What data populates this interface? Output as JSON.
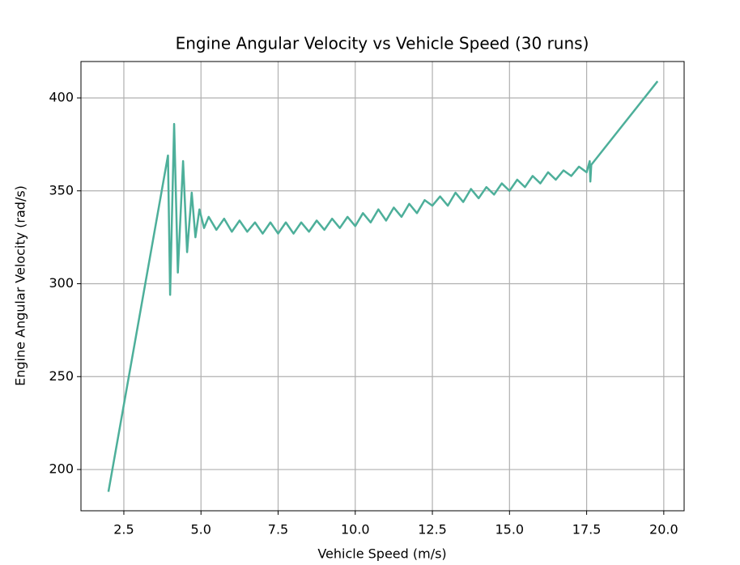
{
  "chart_data": {
    "type": "line",
    "title": "Engine Angular Velocity vs Vehicle Speed (30 runs)",
    "xlabel": "Vehicle Speed (m/s)",
    "ylabel": "Engine Angular Velocity (rad/s)",
    "color": "#4daf9a",
    "grid": true,
    "x": [
      2.0,
      3.93,
      4.0,
      4.13,
      4.25,
      4.42,
      4.55,
      4.7,
      4.82,
      4.95,
      5.1,
      5.25,
      5.5,
      5.75,
      6.0,
      6.25,
      6.5,
      6.75,
      7.0,
      7.25,
      7.5,
      7.75,
      8.0,
      8.25,
      8.5,
      8.75,
      9.0,
      9.25,
      9.5,
      9.75,
      10.0,
      10.25,
      10.5,
      10.75,
      11.0,
      11.25,
      11.5,
      11.75,
      12.0,
      12.25,
      12.5,
      12.75,
      13.0,
      13.25,
      13.5,
      13.75,
      14.0,
      14.25,
      14.5,
      14.75,
      15.0,
      15.25,
      15.5,
      15.75,
      16.0,
      16.25,
      16.5,
      16.75,
      17.0,
      17.25,
      17.5,
      17.6,
      17.62,
      17.65,
      19.8
    ],
    "values": [
      188,
      369,
      294,
      386,
      306,
      366,
      317,
      349,
      325,
      340,
      330,
      336,
      329,
      335,
      328,
      334,
      328,
      333,
      327,
      333,
      327,
      333,
      327,
      333,
      328,
      334,
      329,
      335,
      330,
      336,
      331,
      338,
      333,
      340,
      334,
      341,
      336,
      343,
      338,
      345,
      342,
      347,
      342,
      349,
      344,
      351,
      346,
      352,
      348,
      354,
      350,
      356,
      352,
      358,
      354,
      360,
      356,
      361,
      358,
      363,
      360,
      366,
      355,
      364,
      409
    ],
    "xlim": [
      1.11,
      20.66
    ],
    "ylim": [
      177.8,
      419.6
    ],
    "xticks": [
      2.5,
      {
        "value": 5,
        "label": "5.0"
      },
      7.5,
      {
        "value": 10,
        "label": "10.0"
      },
      12.5,
      {
        "value": 15,
        "label": "15.0"
      },
      17.5,
      {
        "value": 20,
        "label": "20.0"
      }
    ],
    "yticks": [
      200,
      250,
      300,
      350,
      400
    ]
  }
}
